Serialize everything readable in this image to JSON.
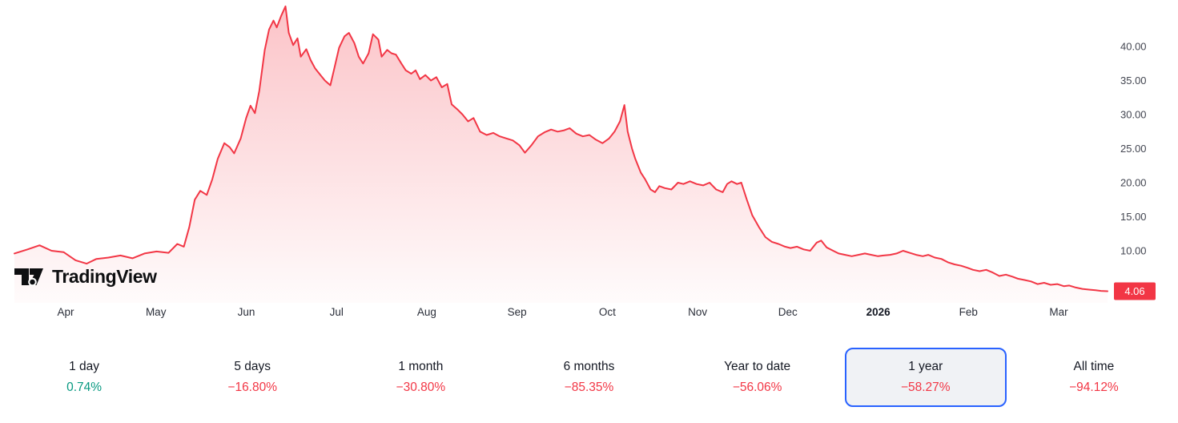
{
  "brand": {
    "name": "TradingView"
  },
  "colors": {
    "up": "#089981",
    "down": "#F23645",
    "line": "#F23645",
    "area_top": "rgba(242,54,69,0.30)",
    "area_bottom": "rgba(242,54,69,0.02)",
    "selected_border": "#2962FF",
    "selected_bg": "#f0f2f5"
  },
  "chart_data": {
    "type": "area",
    "title": "1 year price chart",
    "line_color": "#F23645",
    "x_axis_labels": [
      "Apr",
      "May",
      "Jun",
      "Jul",
      "Aug",
      "Sep",
      "Oct",
      "Nov",
      "Dec",
      "2026",
      "Feb",
      "Mar"
    ],
    "y_ticks": [
      40,
      35,
      30,
      25,
      20,
      15,
      10
    ],
    "y_tick_labels": [
      "40.00",
      "35.00",
      "30.00",
      "25.00",
      "20.00",
      "15.00",
      "10.00"
    ],
    "ylim": [
      4,
      46
    ],
    "last_price": 4.06,
    "last_price_label": "4.06",
    "grid": false,
    "legend": false,
    "points": [
      [
        0.0,
        9.6
      ],
      [
        0.012,
        10.2
      ],
      [
        0.023,
        10.8
      ],
      [
        0.034,
        10.0
      ],
      [
        0.045,
        9.8
      ],
      [
        0.056,
        8.6
      ],
      [
        0.066,
        8.1
      ],
      [
        0.075,
        8.8
      ],
      [
        0.086,
        9.0
      ],
      [
        0.097,
        9.3
      ],
      [
        0.108,
        8.9
      ],
      [
        0.119,
        9.6
      ],
      [
        0.13,
        9.9
      ],
      [
        0.141,
        9.7
      ],
      [
        0.149,
        11.0
      ],
      [
        0.155,
        10.6
      ],
      [
        0.16,
        13.5
      ],
      [
        0.165,
        17.5
      ],
      [
        0.17,
        18.8
      ],
      [
        0.176,
        18.2
      ],
      [
        0.181,
        20.5
      ],
      [
        0.186,
        23.5
      ],
      [
        0.192,
        25.8
      ],
      [
        0.197,
        25.2
      ],
      [
        0.201,
        24.3
      ],
      [
        0.207,
        26.5
      ],
      [
        0.212,
        29.5
      ],
      [
        0.216,
        31.3
      ],
      [
        0.22,
        30.2
      ],
      [
        0.224,
        33.5
      ],
      [
        0.229,
        39.5
      ],
      [
        0.233,
        42.5
      ],
      [
        0.237,
        43.8
      ],
      [
        0.24,
        42.8
      ],
      [
        0.244,
        44.5
      ],
      [
        0.248,
        45.9
      ],
      [
        0.251,
        42.0
      ],
      [
        0.255,
        40.2
      ],
      [
        0.259,
        41.2
      ],
      [
        0.262,
        38.5
      ],
      [
        0.267,
        39.6
      ],
      [
        0.271,
        38.0
      ],
      [
        0.275,
        36.8
      ],
      [
        0.28,
        35.8
      ],
      [
        0.284,
        35.0
      ],
      [
        0.289,
        34.3
      ],
      [
        0.293,
        37.0
      ],
      [
        0.297,
        39.8
      ],
      [
        0.302,
        41.5
      ],
      [
        0.306,
        42.0
      ],
      [
        0.311,
        40.5
      ],
      [
        0.315,
        38.5
      ],
      [
        0.319,
        37.5
      ],
      [
        0.324,
        39.0
      ],
      [
        0.328,
        41.8
      ],
      [
        0.333,
        41.0
      ],
      [
        0.336,
        38.5
      ],
      [
        0.341,
        39.5
      ],
      [
        0.345,
        39.0
      ],
      [
        0.349,
        38.8
      ],
      [
        0.354,
        37.5
      ],
      [
        0.358,
        36.5
      ],
      [
        0.363,
        36.0
      ],
      [
        0.367,
        36.5
      ],
      [
        0.371,
        35.2
      ],
      [
        0.376,
        35.8
      ],
      [
        0.381,
        35.0
      ],
      [
        0.386,
        35.5
      ],
      [
        0.391,
        34.0
      ],
      [
        0.396,
        34.5
      ],
      [
        0.4,
        31.5
      ],
      [
        0.405,
        30.8
      ],
      [
        0.41,
        30.0
      ],
      [
        0.415,
        29.0
      ],
      [
        0.42,
        29.5
      ],
      [
        0.426,
        27.5
      ],
      [
        0.432,
        27.0
      ],
      [
        0.438,
        27.3
      ],
      [
        0.444,
        26.8
      ],
      [
        0.45,
        26.5
      ],
      [
        0.456,
        26.2
      ],
      [
        0.462,
        25.5
      ],
      [
        0.467,
        24.4
      ],
      [
        0.473,
        25.5
      ],
      [
        0.479,
        26.8
      ],
      [
        0.485,
        27.4
      ],
      [
        0.491,
        27.8
      ],
      [
        0.497,
        27.5
      ],
      [
        0.503,
        27.7
      ],
      [
        0.508,
        28.0
      ],
      [
        0.514,
        27.2
      ],
      [
        0.52,
        26.8
      ],
      [
        0.526,
        27.0
      ],
      [
        0.532,
        26.3
      ],
      [
        0.538,
        25.8
      ],
      [
        0.544,
        26.5
      ],
      [
        0.549,
        27.5
      ],
      [
        0.554,
        29.0
      ],
      [
        0.558,
        31.4
      ],
      [
        0.561,
        27.5
      ],
      [
        0.565,
        25.0
      ],
      [
        0.568,
        23.5
      ],
      [
        0.573,
        21.5
      ],
      [
        0.577,
        20.5
      ],
      [
        0.582,
        19.0
      ],
      [
        0.586,
        18.6
      ],
      [
        0.59,
        19.5
      ],
      [
        0.595,
        19.2
      ],
      [
        0.601,
        19.0
      ],
      [
        0.607,
        20.0
      ],
      [
        0.612,
        19.8
      ],
      [
        0.618,
        20.2
      ],
      [
        0.624,
        19.8
      ],
      [
        0.63,
        19.6
      ],
      [
        0.636,
        20.0
      ],
      [
        0.642,
        19.0
      ],
      [
        0.648,
        18.6
      ],
      [
        0.652,
        19.8
      ],
      [
        0.656,
        20.2
      ],
      [
        0.661,
        19.8
      ],
      [
        0.665,
        20.0
      ],
      [
        0.67,
        17.5
      ],
      [
        0.675,
        15.2
      ],
      [
        0.681,
        13.5
      ],
      [
        0.687,
        12.0
      ],
      [
        0.693,
        11.3
      ],
      [
        0.699,
        11.0
      ],
      [
        0.705,
        10.6
      ],
      [
        0.71,
        10.4
      ],
      [
        0.716,
        10.6
      ],
      [
        0.722,
        10.2
      ],
      [
        0.728,
        10.0
      ],
      [
        0.734,
        11.2
      ],
      [
        0.738,
        11.5
      ],
      [
        0.743,
        10.5
      ],
      [
        0.749,
        10.0
      ],
      [
        0.754,
        9.6
      ],
      [
        0.76,
        9.4
      ],
      [
        0.766,
        9.2
      ],
      [
        0.772,
        9.4
      ],
      [
        0.778,
        9.6
      ],
      [
        0.784,
        9.4
      ],
      [
        0.79,
        9.2
      ],
      [
        0.795,
        9.3
      ],
      [
        0.801,
        9.4
      ],
      [
        0.807,
        9.6
      ],
      [
        0.813,
        10.0
      ],
      [
        0.819,
        9.7
      ],
      [
        0.825,
        9.4
      ],
      [
        0.831,
        9.2
      ],
      [
        0.836,
        9.4
      ],
      [
        0.842,
        9.0
      ],
      [
        0.848,
        8.8
      ],
      [
        0.854,
        8.3
      ],
      [
        0.86,
        8.0
      ],
      [
        0.866,
        7.8
      ],
      [
        0.872,
        7.5
      ],
      [
        0.877,
        7.2
      ],
      [
        0.883,
        7.0
      ],
      [
        0.889,
        7.2
      ],
      [
        0.895,
        6.8
      ],
      [
        0.901,
        6.3
      ],
      [
        0.907,
        6.5
      ],
      [
        0.913,
        6.2
      ],
      [
        0.918,
        5.9
      ],
      [
        0.924,
        5.7
      ],
      [
        0.93,
        5.5
      ],
      [
        0.936,
        5.1
      ],
      [
        0.942,
        5.3
      ],
      [
        0.948,
        5.0
      ],
      [
        0.954,
        5.1
      ],
      [
        0.96,
        4.8
      ],
      [
        0.965,
        4.9
      ],
      [
        0.971,
        4.6
      ],
      [
        0.977,
        4.4
      ],
      [
        0.983,
        4.3
      ],
      [
        0.989,
        4.2
      ],
      [
        0.994,
        4.1
      ],
      [
        1.0,
        4.06
      ]
    ]
  },
  "ranges": [
    {
      "label": "1 day",
      "change": "0.74%",
      "direction": "up",
      "selected": false
    },
    {
      "label": "5 days",
      "change": "−16.80%",
      "direction": "down",
      "selected": false
    },
    {
      "label": "1 month",
      "change": "−30.80%",
      "direction": "down",
      "selected": false
    },
    {
      "label": "6 months",
      "change": "−85.35%",
      "direction": "down",
      "selected": false
    },
    {
      "label": "Year to date",
      "change": "−56.06%",
      "direction": "down",
      "selected": false
    },
    {
      "label": "1 year",
      "change": "−58.27%",
      "direction": "down",
      "selected": true
    },
    {
      "label": "All time",
      "change": "−94.12%",
      "direction": "down",
      "selected": false
    }
  ]
}
